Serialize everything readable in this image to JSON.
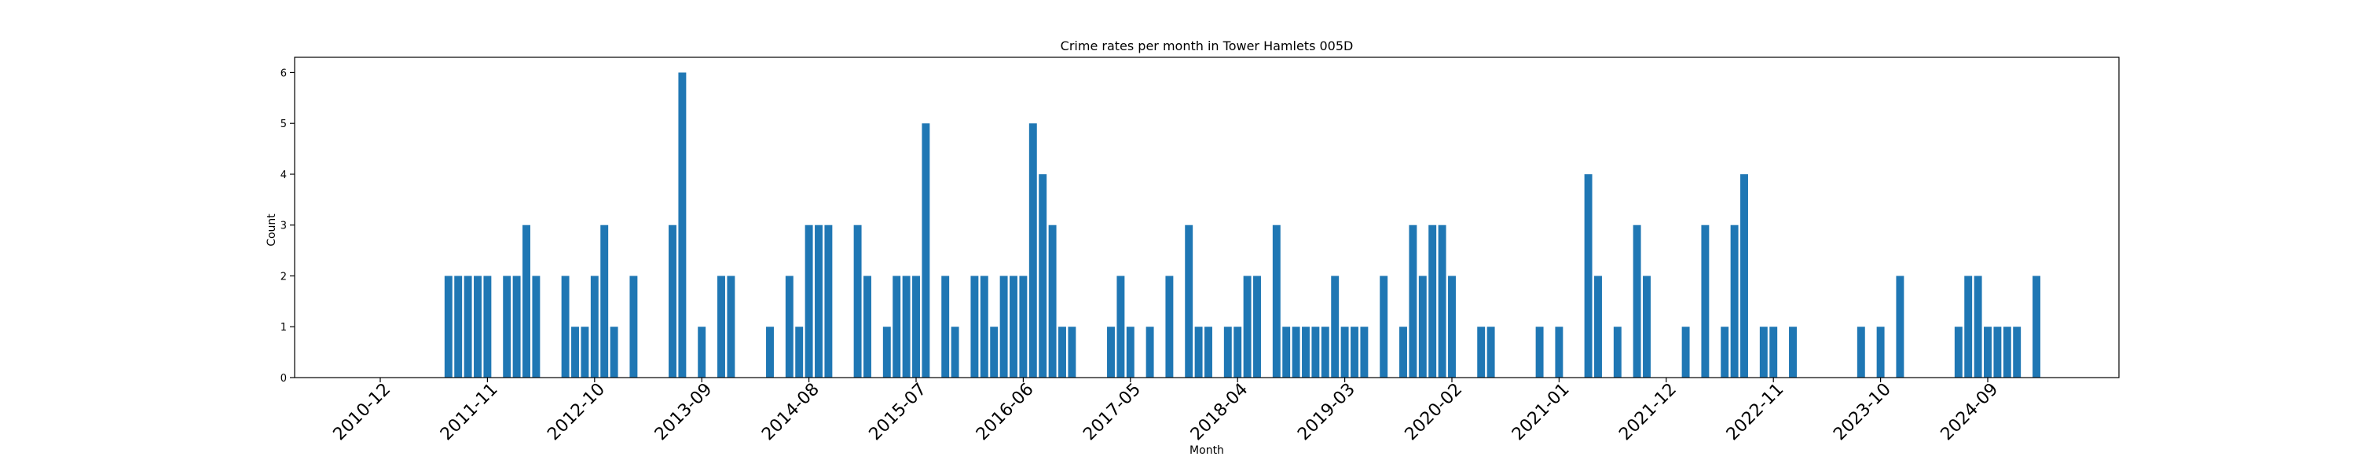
{
  "chart_data": {
    "type": "bar",
    "title": "Crime rates per month in Tower Hamlets 005D",
    "xlabel": "Month",
    "ylabel": "Count",
    "ylim": [
      0,
      6.3
    ],
    "yticks": [
      0,
      1,
      2,
      3,
      4,
      5,
      6
    ],
    "xticks": [
      "2010-12",
      "2011-11",
      "2012-10",
      "2013-09",
      "2014-08",
      "2015-07",
      "2016-06",
      "2017-05",
      "2018-04",
      "2019-03",
      "2020-02",
      "2021-01",
      "2021-12",
      "2022-11",
      "2023-10",
      "2024-09"
    ],
    "grid": false,
    "color": "#1f77b4",
    "months": [
      "2011-07",
      "2011-08",
      "2011-09",
      "2011-10",
      "2011-11",
      "2012-01",
      "2012-02",
      "2012-03",
      "2012-04",
      "2012-07",
      "2012-08",
      "2012-09",
      "2012-10",
      "2012-11",
      "2012-12",
      "2013-02",
      "2013-06",
      "2013-07",
      "2013-09",
      "2013-11",
      "2013-12",
      "2014-04",
      "2014-06",
      "2014-07",
      "2014-08",
      "2014-09",
      "2014-10",
      "2015-01",
      "2015-02",
      "2015-04",
      "2015-05",
      "2015-06",
      "2015-07",
      "2015-08",
      "2015-10",
      "2015-11",
      "2016-01",
      "2016-02",
      "2016-03",
      "2016-04",
      "2016-05",
      "2016-06",
      "2016-07",
      "2016-08",
      "2016-09",
      "2016-10",
      "2016-11",
      "2017-03",
      "2017-04",
      "2017-05",
      "2017-07",
      "2017-09",
      "2017-11",
      "2017-12",
      "2018-01",
      "2018-03",
      "2018-04",
      "2018-05",
      "2018-06",
      "2018-08",
      "2018-09",
      "2018-10",
      "2018-11",
      "2018-12",
      "2019-01",
      "2019-02",
      "2019-03",
      "2019-04",
      "2019-05",
      "2019-07",
      "2019-09",
      "2019-10",
      "2019-11",
      "2019-12",
      "2020-01",
      "2020-02",
      "2020-05",
      "2020-06",
      "2020-11",
      "2021-01",
      "2021-04",
      "2021-05",
      "2021-07",
      "2021-09",
      "2021-10",
      "2022-02",
      "2022-04",
      "2022-06",
      "2022-07",
      "2022-08",
      "2022-10",
      "2022-11",
      "2023-01",
      "2023-08",
      "2023-10",
      "2023-12",
      "2024-06",
      "2024-07",
      "2024-08",
      "2024-09",
      "2024-10",
      "2024-11",
      "2024-12",
      "2025-02"
    ],
    "values": [
      2,
      2,
      2,
      2,
      2,
      2,
      2,
      3,
      2,
      2,
      1,
      1,
      2,
      3,
      1,
      2,
      3,
      6,
      1,
      2,
      2,
      1,
      2,
      1,
      3,
      3,
      3,
      3,
      2,
      1,
      2,
      2,
      2,
      5,
      2,
      1,
      2,
      2,
      1,
      2,
      2,
      2,
      5,
      4,
      3,
      1,
      1,
      1,
      2,
      1,
      1,
      2,
      3,
      1,
      1,
      1,
      1,
      2,
      2,
      3,
      1,
      1,
      1,
      1,
      1,
      2,
      1,
      1,
      1,
      2,
      1,
      3,
      2,
      3,
      3,
      2,
      1,
      1,
      1,
      1,
      4,
      2,
      1,
      3,
      2,
      1,
      3,
      1,
      3,
      4,
      1,
      1,
      1,
      1,
      1,
      2,
      1,
      2,
      2,
      1,
      1,
      1,
      1,
      2
    ]
  }
}
